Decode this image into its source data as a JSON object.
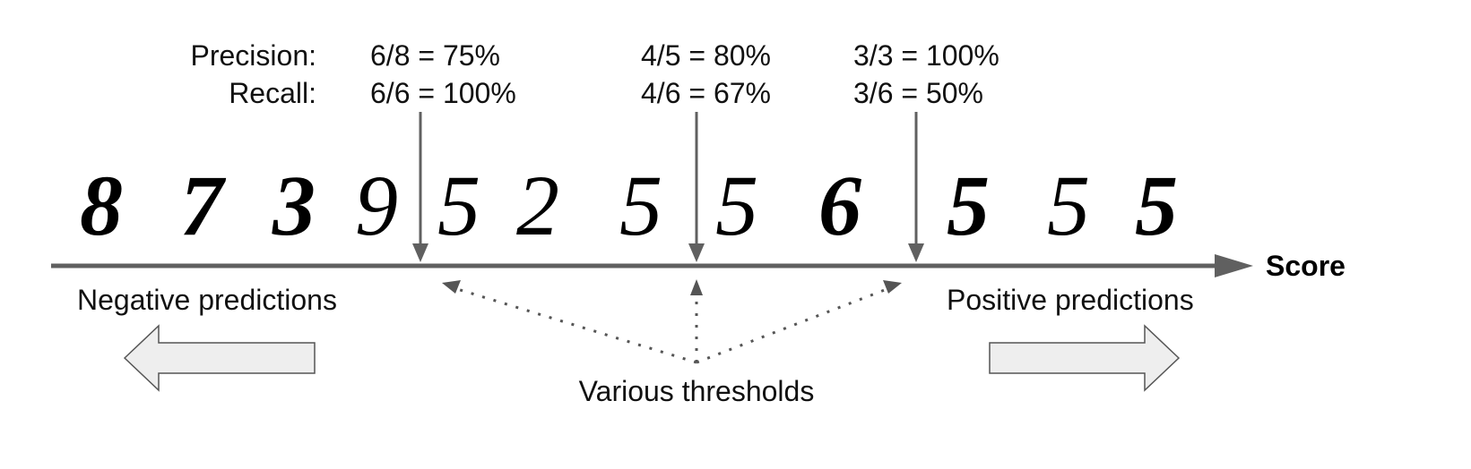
{
  "metrics": {
    "precision_label": "Precision:",
    "recall_label": "Recall:",
    "thresholds": [
      {
        "precision": "6/8 = 75%",
        "recall": "6/6 = 100%"
      },
      {
        "precision": "4/5 = 80%",
        "recall": "4/6 = 67%"
      },
      {
        "precision": "3/3 = 100%",
        "recall": "3/6 = 50%"
      }
    ]
  },
  "digits": [
    "8",
    "7",
    "3",
    "9",
    "5",
    "2",
    "5",
    "5",
    "6",
    "5",
    "5",
    "5"
  ],
  "axis": {
    "label": "Score"
  },
  "negative_label": "Negative predictions",
  "positive_label": "Positive predictions",
  "thresholds_label": "Various thresholds",
  "colors": {
    "axis": "#606060",
    "arrow_fill": "#eeeeee",
    "arrow_stroke": "#555555",
    "dots": "#555555"
  }
}
